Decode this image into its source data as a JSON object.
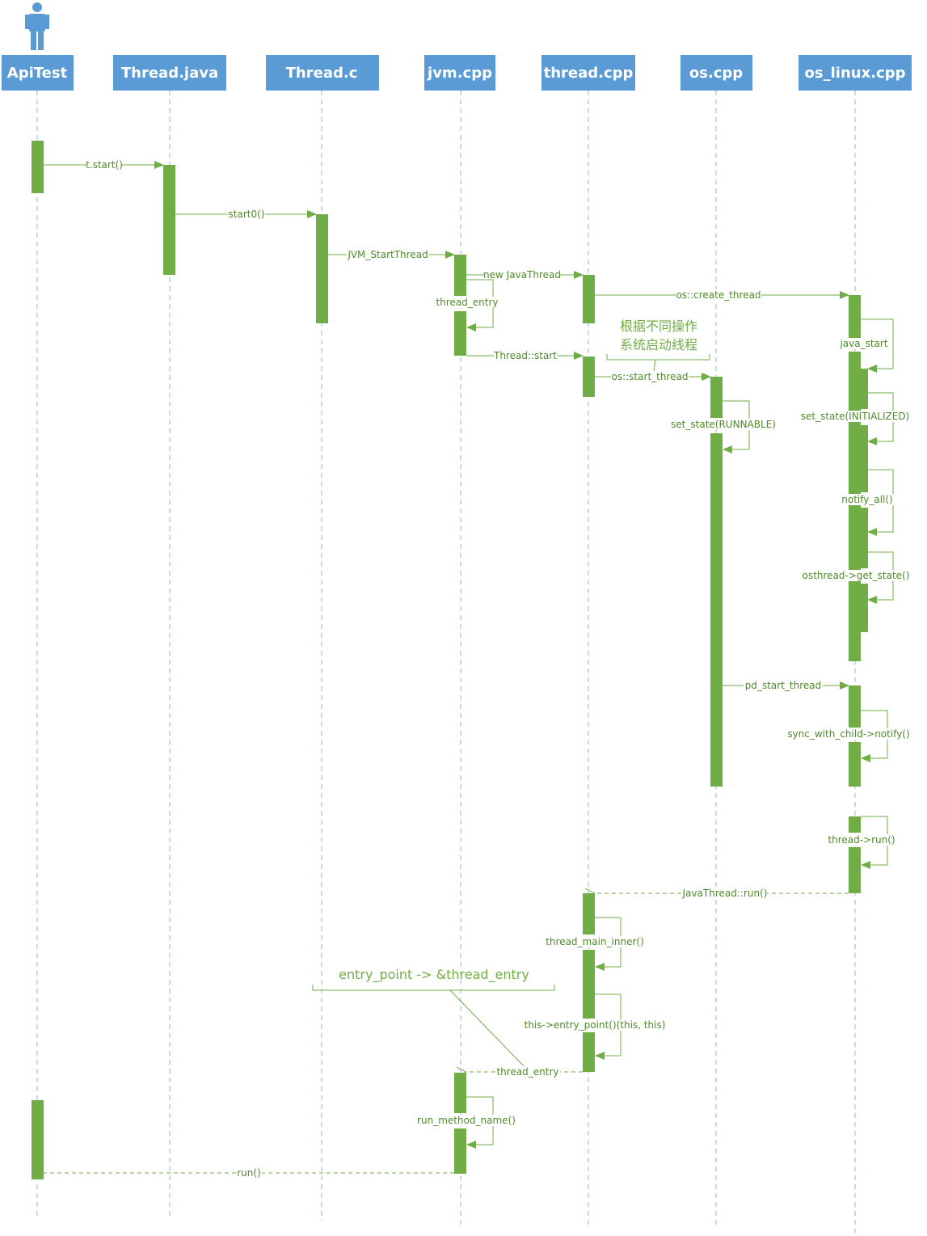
{
  "participants": [
    {
      "id": "apitest",
      "label": "ApiTest"
    },
    {
      "id": "thread_java",
      "label": "Thread.java"
    },
    {
      "id": "thread_c",
      "label": "Thread.c"
    },
    {
      "id": "jvm_cpp",
      "label": "jvm.cpp"
    },
    {
      "id": "thread_cpp",
      "label": "thread.cpp"
    },
    {
      "id": "os_cpp",
      "label": "os.cpp"
    },
    {
      "id": "os_linux_cpp",
      "label": "os_linux.cpp"
    }
  ],
  "messages": {
    "t_start": "t.start()",
    "start0": "start0()",
    "jvm_start_thread": "JVM_StartThread",
    "new_java_thread": "new JavaThread",
    "thread_entry_self": "thread_entry",
    "os_create_thread": "os::create_thread",
    "java_start": "java_start",
    "thread_start": "Thread::start",
    "os_start_thread": "os::start_thread",
    "set_state_runnable": "set_state(RUNNABLE)",
    "set_state_initialized": "set_state(INITIALIZED)",
    "notify_all": "notify_all()",
    "get_state": "osthread->get_state()",
    "pd_start_thread": "pd_start_thread",
    "sync_notify": "sync_with_child->notify()",
    "thread_run": "thread->run()",
    "javathread_run": "JavaThread::run()",
    "thread_main_inner": "thread_main_inner()",
    "entry_point_call": "this->entry_point()(this, this)",
    "thread_entry_return": "thread_entry",
    "run_method_name": "run_method_name()",
    "run_return": "run()"
  },
  "notes": {
    "os_note_line1": "根据不同操作",
    "os_note_line2": "系统启动线程",
    "entry_point_note": "entry_point -> &thread_entry"
  },
  "colors": {
    "header": "#5b9bd5",
    "activation": "#70ad47",
    "lifeline": "#8fb4e3"
  }
}
